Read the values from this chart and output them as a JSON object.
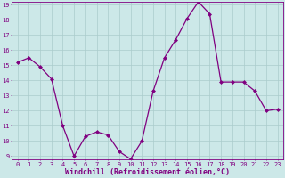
{
  "x": [
    0,
    1,
    2,
    3,
    4,
    5,
    6,
    7,
    8,
    9,
    10,
    11,
    12,
    13,
    14,
    15,
    16,
    17,
    18,
    19,
    20,
    21,
    22,
    23
  ],
  "y": [
    15.2,
    15.5,
    14.9,
    14.1,
    11.0,
    9.0,
    10.3,
    10.6,
    10.4,
    9.3,
    8.8,
    10.0,
    13.3,
    15.5,
    16.7,
    18.1,
    19.2,
    18.4,
    13.9,
    13.9,
    13.9,
    13.3,
    12.0,
    12.1
  ],
  "line_color": "#800080",
  "marker": "D",
  "marker_size": 2.0,
  "bg_color": "#cce8e8",
  "grid_color": "#aacccc",
  "xlabel": "Windchill (Refroidissement éolien,°C)",
  "ylim": [
    9,
    19
  ],
  "xlim": [
    -0.5,
    23.5
  ],
  "yticks": [
    9,
    10,
    11,
    12,
    13,
    14,
    15,
    16,
    17,
    18,
    19
  ],
  "xtick_labels": [
    "0",
    "1",
    "2",
    "3",
    "4",
    "5",
    "6",
    "7",
    "8",
    "9",
    "10",
    "11",
    "12",
    "13",
    "14",
    "15",
    "16",
    "17",
    "18",
    "19",
    "20",
    "21",
    "22",
    "23"
  ],
  "tick_fontsize": 5.0,
  "xlabel_fontsize": 6.0
}
